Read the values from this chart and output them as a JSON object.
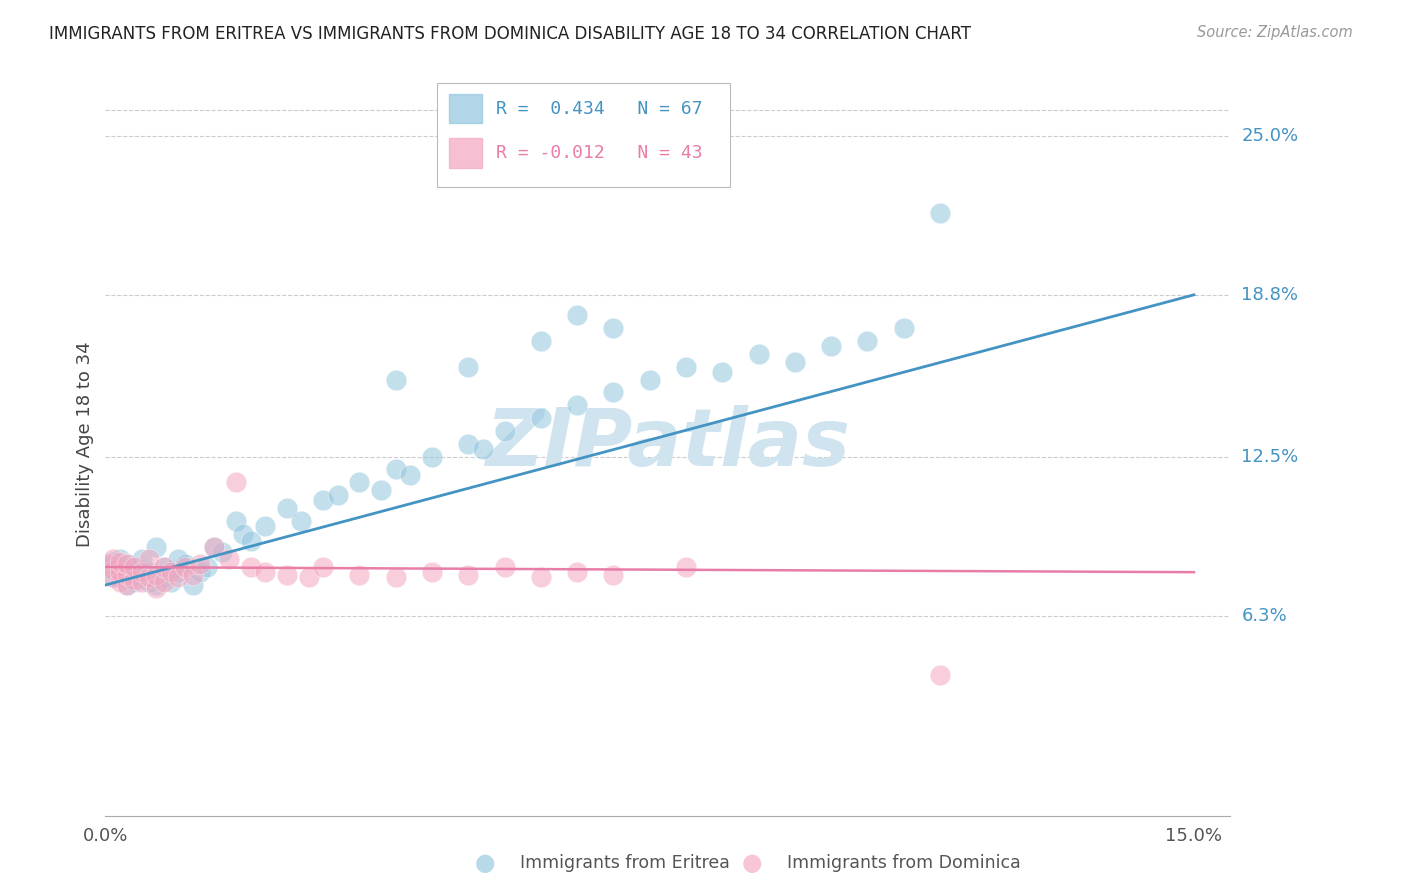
{
  "title": "IMMIGRANTS FROM ERITREA VS IMMIGRANTS FROM DOMINICA DISABILITY AGE 18 TO 34 CORRELATION CHART",
  "source": "Source: ZipAtlas.com",
  "ylabel": "Disability Age 18 to 34",
  "xlim": [
    0.0,
    0.155
  ],
  "ylim": [
    -0.015,
    0.275
  ],
  "ytick_vals": [
    0.063,
    0.125,
    0.188,
    0.25
  ],
  "ytick_labels": [
    "6.3%",
    "12.5%",
    "18.8%",
    "25.0%"
  ],
  "xtick_vals": [
    0.0,
    0.15
  ],
  "xtick_labels": [
    "0.0%",
    "15.0%"
  ],
  "legend_eritrea_label": "Immigrants from Eritrea",
  "legend_dominica_label": "Immigrants from Dominica",
  "R_eritrea": "0.434",
  "N_eritrea": "67",
  "R_dominica": "-0.012",
  "N_dominica": "43",
  "blue_color": "#92c5de",
  "pink_color": "#f4a6c0",
  "line_blue": "#4393c3",
  "line_pink": "#e87da8",
  "watermark": "ZIPatlas",
  "watermark_color": "#d0e4f0",
  "background_color": "#ffffff",
  "blue_line_x0": 0.0,
  "blue_line_y0": 0.075,
  "blue_line_x1": 0.15,
  "blue_line_y1": 0.188,
  "pink_line_x0": 0.0,
  "pink_line_y0": 0.082,
  "pink_line_x1": 0.15,
  "pink_line_y1": 0.08,
  "eritrea_x": [
    0.0005,
    0.001,
    0.001,
    0.001,
    0.001,
    0.002,
    0.002,
    0.002,
    0.002,
    0.003,
    0.003,
    0.003,
    0.004,
    0.004,
    0.004,
    0.005,
    0.005,
    0.005,
    0.006,
    0.006,
    0.007,
    0.007,
    0.008,
    0.008,
    0.009,
    0.009,
    0.01,
    0.01,
    0.011,
    0.012,
    0.013,
    0.014,
    0.015,
    0.016,
    0.018,
    0.019,
    0.02,
    0.022,
    0.025,
    0.027,
    0.03,
    0.032,
    0.035,
    0.038,
    0.04,
    0.042,
    0.045,
    0.05,
    0.052,
    0.055,
    0.06,
    0.065,
    0.07,
    0.075,
    0.08,
    0.085,
    0.09,
    0.095,
    0.1,
    0.105,
    0.11,
    0.05,
    0.06,
    0.065,
    0.07,
    0.115,
    0.04
  ],
  "eritrea_y": [
    0.082,
    0.078,
    0.08,
    0.082,
    0.084,
    0.078,
    0.08,
    0.082,
    0.085,
    0.075,
    0.08,
    0.083,
    0.076,
    0.079,
    0.082,
    0.078,
    0.081,
    0.085,
    0.076,
    0.08,
    0.075,
    0.09,
    0.078,
    0.082,
    0.076,
    0.081,
    0.08,
    0.085,
    0.083,
    0.075,
    0.08,
    0.082,
    0.09,
    0.088,
    0.1,
    0.095,
    0.092,
    0.098,
    0.105,
    0.1,
    0.108,
    0.11,
    0.115,
    0.112,
    0.12,
    0.118,
    0.125,
    0.13,
    0.128,
    0.135,
    0.14,
    0.145,
    0.15,
    0.155,
    0.16,
    0.158,
    0.165,
    0.162,
    0.168,
    0.17,
    0.175,
    0.16,
    0.17,
    0.18,
    0.175,
    0.22,
    0.155
  ],
  "dominica_x": [
    0.0005,
    0.001,
    0.001,
    0.001,
    0.002,
    0.002,
    0.002,
    0.003,
    0.003,
    0.003,
    0.004,
    0.004,
    0.005,
    0.005,
    0.006,
    0.006,
    0.007,
    0.007,
    0.008,
    0.008,
    0.009,
    0.01,
    0.011,
    0.012,
    0.013,
    0.015,
    0.017,
    0.018,
    0.02,
    0.022,
    0.025,
    0.028,
    0.03,
    0.035,
    0.04,
    0.045,
    0.05,
    0.055,
    0.06,
    0.065,
    0.07,
    0.08,
    0.115
  ],
  "dominica_y": [
    0.083,
    0.078,
    0.081,
    0.085,
    0.076,
    0.08,
    0.084,
    0.075,
    0.079,
    0.083,
    0.077,
    0.082,
    0.076,
    0.08,
    0.078,
    0.085,
    0.074,
    0.079,
    0.076,
    0.082,
    0.08,
    0.078,
    0.082,
    0.079,
    0.083,
    0.09,
    0.085,
    0.115,
    0.082,
    0.08,
    0.079,
    0.078,
    0.082,
    0.079,
    0.078,
    0.08,
    0.079,
    0.082,
    0.078,
    0.08,
    0.079,
    0.082,
    0.04
  ]
}
